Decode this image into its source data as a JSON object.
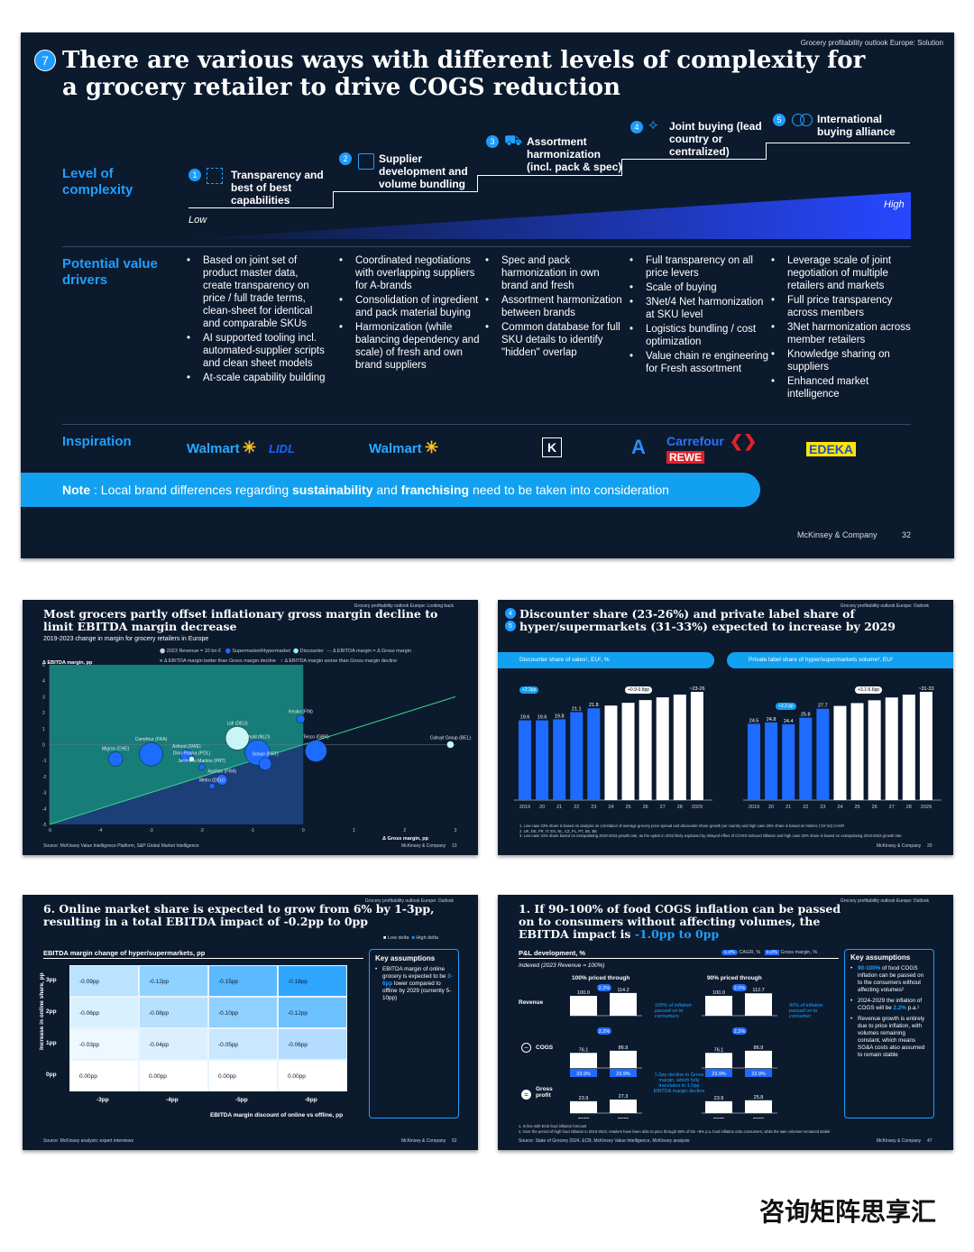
{
  "main": {
    "kicker": "Grocery profitability outlook Europe: Solution",
    "number": "7",
    "title": "There are various ways with different levels of complexity for a grocery retailer to drive COGS reduction",
    "row_complexity": "Level of complexity",
    "row_drivers": "Potential value drivers",
    "row_inspiration": "Inspiration",
    "low": "Low",
    "high": "High",
    "steps": [
      {
        "n": "1",
        "label": "Transparency and best of best capabilities",
        "icon": "transparency-icon"
      },
      {
        "n": "2",
        "label": "Supplier development and volume bundling",
        "icon": "building-icon"
      },
      {
        "n": "3",
        "label": "Assortment harmonization (incl. pack & spec)",
        "icon": "cart-icon"
      },
      {
        "n": "4",
        "label": "Joint buying (lead country or centralized)",
        "icon": "handshake-icon"
      },
      {
        "n": "5",
        "label": "International buying alliance",
        "icon": "alliance-icon"
      }
    ],
    "drivers": [
      [
        "Based on joint set of product master data, create transparency on price / full trade terms, clean-sheet for identical and comparable SKUs",
        "AI supported tooling incl. automated-supplier scripts and clean sheet models",
        "At-scale capability building"
      ],
      [
        "Coordinated negotiations with overlapping suppliers for A-brands",
        "Consolidation of ingredient and pack material buying",
        "Harmonization (while balancing dependency and scale) of fresh and own brand suppliers"
      ],
      [
        "Spec and pack harmonization in own brand and fresh",
        "Assortment harmonization between brands",
        "Common database for full SKU details to identify \"hidden\" overlap"
      ],
      [
        "Full transparency on all price levers",
        "Scale of buying",
        "3Net/4 Net harmonization at SKU level",
        "Logistics bundling / cost optimization",
        "Value chain re engineering for Fresh assortment"
      ],
      [
        "Leverage scale of joint negotiation of multiple retailers and markets",
        "Full price transparency across members",
        "3Net harmonization across member retailers",
        "Knowledge sharing on suppliers",
        "Enhanced market intelligence"
      ]
    ],
    "logos": [
      "Walmart",
      "LIDL",
      "Walmart",
      "K",
      "A",
      "Carrefour",
      "REWE",
      "EDEKA"
    ],
    "note_prefix": "Note",
    "note_a": " : Local brand differences regarding ",
    "note_b": "sustainability",
    "note_c": " and ",
    "note_d": "franchising",
    "note_e": " need to be taken into consideration",
    "footer": "McKinsey & Company",
    "page": "32"
  },
  "scatter_slide": {
    "kicker": "Grocery profitability outlook Europe: Looking back",
    "title": "Most grocers partly offset inflationary gross margin decline to limit EBITDA margin decrease",
    "subtitle": "2019-2023 change in margin for grocery retailers in Europe",
    "legend": [
      "2023 Revenue = 10 bn €",
      "Supermarket/Hypermarket",
      "Discounter",
      "Δ EBITDA margin = Δ Gross margin",
      "Δ EBITDA margin better than Gross margin decline",
      "Δ EBITDA margin worse than Gross margin decline"
    ],
    "source": "Source: McKinsey Value Intelligence Platform, S&P Global Market Intelligence",
    "footer": "McKinsey & Company",
    "page": "13"
  },
  "bars_slide": {
    "kicker": "Grocery profitability outlook Europe: Outlook",
    "n1": "4",
    "n2": "5",
    "title": "Discounter share (23-26%) and private label share of hyper/supermarkets (31-33%) expected to increase by 2029",
    "panel1": "Discounter share of sales¹, EU², %",
    "panel2": "Private label share of hyper/supermarkets volume³, EU²",
    "b1": "+2.2pp",
    "b2": "+0.9-3.8pp",
    "b3": "+3.2 pp",
    "b4": "+3.1-5.6pp",
    "notes": [
      "1. Low case 23% share is based on analysis on correlation of average grocery price spread and discounter share growth per country and high case 26% share is based on historic ('19-'23) CAGR",
      "2. UK, DE, FR, IT, ES, NL, CZ, PL, PT, SE, BE",
      "3. Low case 31% share based on extrapolating 2019-2023 growth rate, as the uptick in 2023 likely explained by delayed effect of COVID-induced inflation and high case 33% share is based on extrapolating 2019-2023 growth rate"
    ],
    "footer": "McKinsey & Company",
    "page": "20"
  },
  "heat_slide": {
    "kicker": "Grocery profitability outlook Europe: Outlook",
    "title": "6. Online market share is expected to grow from 6% by 1-3pp, resulting in a total EBITDA impact of -0.2pp to 0pp",
    "legend_low": "Low delta",
    "legend_high": "High delta",
    "chart_title": "EBITDA margin change of hyper/supermarkets, pp",
    "ylabel": "Increase in online share, pp",
    "xlabel": "EBITDA margin discount of online vs offline, pp",
    "rows": [
      "3pp",
      "2pp",
      "1pp",
      "0pp"
    ],
    "cols": [
      "-3pp",
      "-4pp",
      "-5pp",
      "-6pp"
    ],
    "cells": [
      [
        "-0.09pp",
        "-0.12pp",
        "-0.15pp",
        "-0.18pp"
      ],
      [
        "-0.06pp",
        "-0.08pp",
        "-0.10pp",
        "-0.12pp"
      ],
      [
        "-0.03pp",
        "-0.04pp",
        "-0.05pp",
        "-0.06pp"
      ],
      [
        "0.00pp",
        "0.00pp",
        "0.00pp",
        "0.00pp"
      ]
    ],
    "ka_title": "Key assumptions",
    "ka_text": "EBITDA margin of online grocery is expected to be ",
    "ka_hl": "3-6pp",
    "ka_text2": " lower compared to offline by 2029 (currently 5-10pp)",
    "source": "Source: McKinsey analysis; expert interviews",
    "footer": "McKinsey & Company",
    "page": "52"
  },
  "pl_slide": {
    "kicker": "Grocery profitability outlook Europe: Outlook",
    "title_a": "1. If 90-100% of food COGS inflation can be passed on to consumers without affecting volumes, the EBITDA impact is ",
    "title_hl": "-1.0pp to 0pp",
    "pl": "P&L development, %",
    "cagr": "CAGR, %",
    "gm": "Gross margin, %",
    "indexed": "Indexed (2023 Revenue = 100%)",
    "h1": "100% priced through",
    "h2": "90% priced through",
    "rows": [
      "Revenue",
      "COGS",
      "Gross profit"
    ],
    "rev": [
      [
        "100.0",
        "114.2"
      ],
      [
        "100.0",
        "112.7"
      ]
    ],
    "cogs": [
      [
        "76.1",
        "86.9"
      ],
      [
        "76.1",
        "86.9"
      ]
    ],
    "gp": [
      [
        "23.9",
        "27.3"
      ],
      [
        "23.9",
        "25.8"
      ]
    ],
    "gmv": [
      [
        "23.9%",
        "23.9%"
      ],
      [
        "23.9%",
        "22.9%"
      ]
    ],
    "cagr_rev": [
      "2.2%",
      "2.0%"
    ],
    "cagr_cogs": [
      "2.2%",
      "2.2%"
    ],
    "note1": "100% of inflation passed on to consumers",
    "note2": "90% of inflation passed on to consumer",
    "note3": "1.0pp decline in Gross margin, which fully translates to 1.0pp EBITDA margin decline",
    "years": [
      "2023",
      "2029",
      "2023",
      "2029"
    ],
    "ka_title": "Key assumptions",
    "ka": [
      [
        "90-100%",
        " of food COGS inflation can be passed on to the consumers without affecting volumes²"
      ],
      [
        "2024-2029 the inflation of COGS will be ",
        "2.2%",
        " p.a.¹"
      ],
      [
        "Revenue growth is entirely due to price inflation, with volumes remaining constant, which means SG&A costs also assumed to remain stable"
      ]
    ],
    "notes": [
      "1. In line with ECB food inflation forecast",
      "2. Over the period of high food inflation in 2019-2023, retailers have been able to price through 98% of the ~6% p.a. food inflation onto consumers, while the sale volumes remained stable"
    ],
    "source": "Source: State of Grocery 2024, ECB, McKinsey Value Intelligence, McKinsey analysis",
    "footer": "McKinsey & Company",
    "page": "47"
  },
  "watermark": "咨询矩阵思享汇",
  "chart_data": [
    {
      "type": "scatter",
      "xlabel": "Δ Gross margin, pp",
      "ylabel": "Δ EBITDA margin, pp",
      "xlim": [
        -5,
        3
      ],
      "ylim": [
        -5,
        5
      ],
      "x_ticks": [
        "-5",
        "-4",
        "-3",
        "-2",
        "-1",
        "0",
        "1",
        "2",
        "3"
      ],
      "y_ticks": [
        "5",
        "4",
        "3",
        "2",
        "1",
        "0",
        "-1",
        "-2",
        "-3",
        "-4",
        "-5"
      ],
      "points": [
        {
          "name": "Lidl (DEU)",
          "x": -1.3,
          "y": 0.4,
          "size": 26,
          "kind": "discounter"
        },
        {
          "name": "Kesko (FIN)",
          "x": -0.05,
          "y": 1.6,
          "size": 9,
          "kind": "super"
        },
        {
          "name": "Carrefour (FRA)",
          "x": -3.0,
          "y": -0.6,
          "size": 26,
          "kind": "super"
        },
        {
          "name": "Axfood (SWE)",
          "x": -2.3,
          "y": -0.7,
          "size": 14,
          "kind": "super"
        },
        {
          "name": "Ahold (NLD)",
          "x": -0.9,
          "y": -0.5,
          "size": 28,
          "kind": "super"
        },
        {
          "name": "Tesco (GBR)",
          "x": 0.25,
          "y": -0.4,
          "size": 24,
          "kind": "super"
        },
        {
          "name": "Colruyt Group (BEL)",
          "x": 2.9,
          "y": 0,
          "size": 8,
          "kind": "discounter"
        },
        {
          "name": "Migros (CHE)",
          "x": -3.7,
          "y": -0.9,
          "size": 16,
          "kind": "super"
        },
        {
          "name": "Dino Polska (POL)",
          "x": -2.2,
          "y": -0.9,
          "size": 6,
          "kind": "discounter"
        },
        {
          "name": "Jerónimo Martins (PRT)",
          "x": -2.0,
          "y": -1.4,
          "size": 7,
          "kind": "super"
        },
        {
          "name": "Sonae (PRT)",
          "x": -0.75,
          "y": -1.2,
          "size": 14,
          "kind": "super"
        },
        {
          "name": "Auchan (FRA)",
          "x": -1.6,
          "y": -2.2,
          "size": 12,
          "kind": "super"
        },
        {
          "name": "Metro (DEU)",
          "x": -1.8,
          "y": -2.6,
          "size": 6,
          "kind": "super"
        }
      ]
    },
    {
      "type": "bar",
      "title": "Discounter share of sales¹, EU², %",
      "categories": [
        "2019",
        "20",
        "21",
        "22",
        "23",
        "24",
        "25",
        "26",
        "27",
        "28",
        "2029"
      ],
      "values": [
        19.6,
        19.6,
        19.8,
        21.1,
        21.8,
        22.3,
        22.8,
        23.3,
        23.8,
        24.3,
        24.8
      ],
      "labels": [
        "19.6",
        "19.6",
        "19.8",
        "21.1",
        "21.8",
        "",
        "",
        "",
        "",
        "",
        "~23-26"
      ]
    },
    {
      "type": "bar",
      "title": "Private label share of hyper/supermarkets volume³, EU²",
      "categories": [
        "2019",
        "20",
        "21",
        "22",
        "23",
        "24",
        "25",
        "26",
        "27",
        "28",
        "2029"
      ],
      "values": [
        24.5,
        24.8,
        24.4,
        25.8,
        27.7,
        28.3,
        28.9,
        29.5,
        30.1,
        30.7,
        31.3
      ],
      "labels": [
        "24.5",
        "24.8",
        "24.4",
        "25.8",
        "27.7",
        "",
        "",
        "",
        "",
        "",
        "~31-33"
      ]
    }
  ]
}
